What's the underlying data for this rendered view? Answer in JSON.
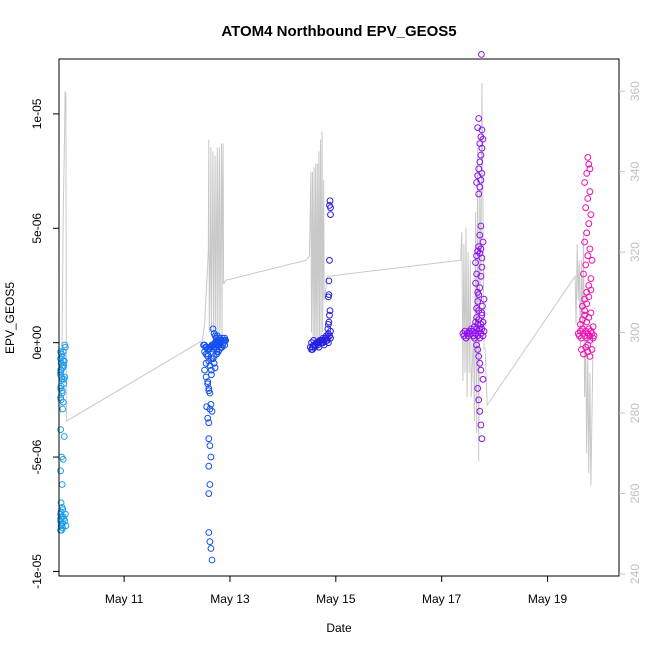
{
  "chart_data": {
    "type": "scatter",
    "title": "ATOM4 Northbound EPV_GEOS5",
    "xlabel": "Date",
    "ylabel": "EPV_GEOS5",
    "x_tick_labels": [
      "May 11",
      "May 13",
      "May 15",
      "May 17",
      "May 19"
    ],
    "x_tick_values": [
      11,
      13,
      15,
      17,
      19
    ],
    "xlim": [
      9.77,
      20.35
    ],
    "ylim": [
      -1.02e-05,
      1.24e-05
    ],
    "y_tick_labels": [
      "-1e-05",
      "-5e-06",
      "0e+00",
      "5e-06",
      "1e-05"
    ],
    "y_tick_values": [
      -1e-05,
      -5e-06,
      0,
      5e-06,
      1e-05
    ],
    "y2lim": [
      239.5,
      368
    ],
    "y2_tick_labels": [
      "240",
      "260",
      "280",
      "300",
      "320",
      "340",
      "360"
    ],
    "y2_tick_values": [
      240,
      260,
      280,
      300,
      320,
      340,
      360
    ],
    "grid": false,
    "colors": {
      "secondary_line": "#c8c8c8",
      "frame": "#000000",
      "right_axis": "#c0c0c0"
    },
    "series": [
      {
        "color": "#1ea0f0",
        "x": [
          9.8,
          9.82,
          9.83,
          9.8,
          9.85,
          9.81,
          9.84,
          9.8,
          9.82,
          9.86,
          9.8,
          9.83,
          9.81,
          9.84,
          9.8,
          9.82,
          9.85,
          9.8,
          9.83,
          9.81,
          9.84,
          9.8,
          9.82,
          9.86,
          9.8,
          9.83,
          9.81,
          9.84,
          9.8,
          9.82,
          9.85,
          9.81,
          9.83,
          9.8,
          9.84,
          9.82,
          9.8,
          9.86,
          9.81,
          9.83,
          9.8,
          9.85,
          9.82,
          9.84,
          9.81,
          9.8,
          9.83,
          9.85,
          9.87,
          9.86,
          9.88,
          9.89,
          9.88,
          9.9,
          9.88,
          9.89,
          9.87
        ],
        "y": [
          -4e-07,
          -5e-07,
          -6e-07,
          -7e-07,
          -8e-07,
          -9e-07,
          -1.1e-06,
          -1.3e-06,
          -1.5e-06,
          -1.8e-06,
          -2e-06,
          -2.2e-06,
          -2.5e-06,
          -2.9e-06,
          -3.8e-06,
          -5e-06,
          -5.1e-06,
          -5.6e-06,
          -6.2e-06,
          -7e-06,
          -7.3e-06,
          -7.5e-06,
          -7.6e-06,
          -7.7e-06,
          -7.8e-06,
          -7.9e-06,
          -8e-06,
          -8.1e-06,
          -8.2e-06,
          -8.2e-06,
          -7.6e-06,
          -7.4e-06,
          -7.2e-06,
          -7.7e-06,
          -7.9e-06,
          -8e-06,
          -1.2e-06,
          -1.6e-06,
          -1.9e-06,
          -2.1e-06,
          -2.4e-06,
          -2.6e-06,
          -9e-07,
          -1e-06,
          -1.2e-06,
          -1.4e-06,
          -1.6e-06,
          -4e-07,
          -8e-07,
          -1e-06,
          -1.5e-06,
          -7.5e-06,
          -7.8e-06,
          -8e-06,
          -1e-07,
          -2e-07,
          -4.1e-06
        ]
      },
      {
        "color": "#1450f0",
        "x": [
          12.5,
          12.52,
          12.54,
          12.56,
          12.58,
          12.6,
          12.62,
          12.64,
          12.66,
          12.68,
          12.7,
          12.72,
          12.74,
          12.76,
          12.78,
          12.8,
          12.82,
          12.84,
          12.86,
          12.88,
          12.9,
          12.92,
          12.52,
          12.55,
          12.58,
          12.6,
          12.62,
          12.65,
          12.68,
          12.7,
          12.72,
          12.75,
          12.78,
          12.8,
          12.83,
          12.86,
          12.88,
          12.9,
          12.55,
          12.58,
          12.6,
          12.62,
          12.65,
          12.56,
          12.58,
          12.6,
          12.62,
          12.64,
          12.66,
          12.6,
          12.62,
          12.64,
          12.6,
          12.62,
          12.6,
          12.6,
          12.62,
          12.64,
          12.66,
          12.68,
          12.7,
          12.72,
          12.74,
          12.76,
          12.78,
          12.8,
          12.82,
          12.7,
          12.75,
          12.8,
          12.85,
          12.9,
          12.65,
          12.7,
          12.75,
          12.58,
          12.62,
          12.66,
          12.7,
          12.74,
          12.55,
          12.52,
          12.58,
          12.6
        ],
        "y": [
          -1e-07,
          -1e-07,
          -2e-07,
          -2e-07,
          -3e-07,
          -3e-07,
          -2e-07,
          -2e-07,
          -1e-07,
          -1e-07,
          -1e-07,
          0,
          0,
          1e-07,
          -1e-07,
          0,
          1e-07,
          1e-07,
          2e-07,
          1e-07,
          2e-07,
          1e-07,
          -4e-07,
          -5e-07,
          -6e-07,
          -8e-07,
          -1e-06,
          -1.2e-06,
          -7e-07,
          -9e-07,
          -1.1e-06,
          -5e-07,
          -4e-07,
          -3e-07,
          -2e-07,
          -1e-07,
          0,
          1e-07,
          -1.5e-06,
          -1.8e-06,
          -2e-06,
          -2.2e-06,
          -1.4e-06,
          -2.8e-06,
          -3.3e-06,
          -3.5e-06,
          -2.9e-06,
          -2.7e-06,
          -3e-06,
          -4.2e-06,
          -4.5e-06,
          -5e-06,
          -5.4e-06,
          -6.2e-06,
          -6.6e-06,
          -8.3e-06,
          -8.7e-06,
          -9e-06,
          -9.5e-06,
          6e-07,
          4e-07,
          3e-07,
          2e-07,
          3e-07,
          1e-07,
          2e-07,
          0,
          -2e-07,
          -4e-07,
          -1e-07,
          -2e-07,
          -1e-07,
          -7e-07,
          -6e-07,
          -3e-07,
          -5e-07,
          -2e-07,
          -1e-07,
          -3e-07,
          -1e-07,
          -9e-07,
          -1.2e-06,
          -1.7e-06,
          -2.1e-06
        ]
      },
      {
        "color": "#2820e0",
        "x": [
          14.52,
          14.54,
          14.56,
          14.58,
          14.6,
          14.62,
          14.64,
          14.66,
          14.68,
          14.7,
          14.72,
          14.74,
          14.76,
          14.78,
          14.8,
          14.82,
          14.84,
          14.86,
          14.88,
          14.9,
          14.54,
          14.58,
          14.62,
          14.66,
          14.7,
          14.74,
          14.78,
          14.82,
          14.86,
          14.9,
          14.56,
          14.6,
          14.64,
          14.68,
          14.72,
          14.76,
          14.8,
          14.84,
          14.88,
          14.85,
          14.86,
          14.87,
          14.88,
          14.89,
          14.86,
          14.87,
          14.88,
          14.87,
          14.9,
          14.89,
          14.88,
          14.9
        ],
        "y": [
          -2e-07,
          -3e-07,
          -2e-07,
          -1e-07,
          -2e-07,
          -1e-07,
          0,
          -1e-07,
          0,
          1e-07,
          0,
          1e-07,
          2e-07,
          1e-07,
          2e-07,
          3e-07,
          2e-07,
          4e-07,
          3e-07,
          5e-07,
          0,
          1e-07,
          -1e-07,
          0,
          1e-07,
          0,
          -1e-07,
          1e-07,
          0,
          2e-07,
          -3e-07,
          -1e-07,
          0,
          -2e-07,
          1e-07,
          0,
          2e-07,
          1e-07,
          3e-07,
          6e-07,
          8e-07,
          9e-07,
          1.2e-06,
          1.4e-06,
          2e-06,
          2.1e-06,
          3.6e-06,
          2.7e-06,
          5.9e-06,
          6.2e-06,
          6e-06,
          5.6e-06
        ]
      },
      {
        "color": "#9010f0",
        "x": [
          17.4,
          17.42,
          17.44,
          17.46,
          17.48,
          17.5,
          17.52,
          17.54,
          17.56,
          17.58,
          17.6,
          17.62,
          17.64,
          17.66,
          17.68,
          17.7,
          17.72,
          17.74,
          17.76,
          17.78,
          17.8,
          17.62,
          17.64,
          17.66,
          17.68,
          17.7,
          17.72,
          17.74,
          17.76,
          17.78,
          17.66,
          17.68,
          17.7,
          17.72,
          17.74,
          17.76,
          17.64,
          17.66,
          17.68,
          17.7,
          17.72,
          17.74,
          17.76,
          17.78,
          17.66,
          17.68,
          17.7,
          17.72,
          17.74,
          17.76,
          17.68,
          17.7,
          17.72,
          17.74,
          17.76,
          17.7,
          17.72,
          17.74,
          17.76,
          17.78,
          17.66,
          17.68,
          17.7,
          17.72,
          17.74,
          17.68,
          17.7,
          17.72,
          17.74,
          17.76,
          17.78,
          17.75,
          17.76,
          17.77,
          17.78,
          17.8,
          17.64,
          17.66,
          17.68,
          17.7,
          17.72,
          17.74
        ],
        "y": [
          4e-07,
          3e-07,
          5e-07,
          2e-07,
          4e-07,
          3e-07,
          5e-07,
          4e-07,
          6e-07,
          5e-07,
          3e-07,
          2e-07,
          4e-07,
          6e-07,
          3e-07,
          5e-07,
          2e-07,
          4e-07,
          6e-07,
          3e-07,
          5e-07,
          7e-07,
          9e-07,
          1.1e-06,
          8e-07,
          1e-06,
          6e-07,
          8e-07,
          1.2e-06,
          9e-07,
          1.5e-06,
          1.8e-06,
          2.1e-06,
          2.4e-06,
          2.9e-06,
          3.3e-06,
          3.5e-06,
          3.8e-06,
          4e-06,
          4.2e-06,
          3.9e-06,
          4.1e-06,
          3.7e-06,
          4.4e-06,
          7e-06,
          7.3e-06,
          7.6e-06,
          7.9e-06,
          8.2e-06,
          8.5e-06,
          9.4e-06,
          9.8e-06,
          8.7e-06,
          9e-06,
          9.3e-06,
          6.5e-06,
          6.8e-06,
          7.1e-06,
          7.4e-06,
          8.9e-06,
          -1e-07,
          -3e-07,
          -6e-07,
          -9e-07,
          -1.2e-06,
          -2e-06,
          -2.5e-06,
          -3e-06,
          -3.6e-06,
          -4.2e-06,
          -1.6e-06,
          1.26e-05,
          1.3e-06,
          1.6e-06,
          9e-07,
          1.9e-06,
          2.6e-06,
          3e-06,
          2.2e-06,
          1.4e-06,
          4.7e-06,
          5.1e-06
        ]
      },
      {
        "color": "#f010b4",
        "x": [
          19.58,
          19.6,
          19.62,
          19.64,
          19.66,
          19.68,
          19.7,
          19.72,
          19.74,
          19.76,
          19.78,
          19.8,
          19.82,
          19.84,
          19.86,
          19.88,
          19.62,
          19.66,
          19.7,
          19.74,
          19.78,
          19.82,
          19.86,
          19.64,
          19.68,
          19.72,
          19.76,
          19.8,
          19.84,
          19.66,
          19.7,
          19.74,
          19.78,
          19.82,
          19.68,
          19.72,
          19.76,
          19.8,
          19.84,
          19.7,
          19.74,
          19.78,
          19.82,
          19.72,
          19.76,
          19.8,
          19.7,
          19.74,
          19.78,
          19.76,
          19.8,
          19.7,
          19.74,
          19.78,
          19.82,
          19.76,
          19.8
        ],
        "y": [
          4e-07,
          3e-07,
          5e-07,
          2e-07,
          6e-07,
          4e-07,
          3e-07,
          5e-07,
          2e-07,
          4e-07,
          6e-07,
          3e-07,
          5e-07,
          4e-07,
          2e-07,
          3e-07,
          8e-07,
          1e-06,
          1.2e-06,
          9e-07,
          1.1e-06,
          1.3e-06,
          7e-07,
          -3e-07,
          -5e-07,
          -2e-07,
          -4e-07,
          -6e-07,
          -3e-07,
          1.6e-06,
          1.9e-06,
          2.2e-06,
          2.5e-06,
          2.8e-06,
          3e-06,
          3.4e-06,
          3.8e-06,
          4.1e-06,
          3.6e-06,
          4.4e-06,
          4.8e-06,
          5.2e-06,
          5.6e-06,
          5.9e-06,
          6.3e-06,
          6.6e-06,
          7e-06,
          7.4e-06,
          7.8e-06,
          8.1e-06,
          7.6e-06,
          1.4e-06,
          1.7e-06,
          2e-06,
          2.3e-06,
          -1e-07,
          1e-07
        ]
      }
    ],
    "secondary_line_y2": [
      [
        9.8,
        280
      ],
      [
        9.83,
        300
      ],
      [
        9.85,
        330
      ],
      [
        9.86,
        338
      ],
      [
        9.875,
        350
      ],
      [
        9.885,
        360
      ],
      [
        9.9,
        359
      ],
      [
        9.91,
        278
      ],
      [
        12.48,
        298
      ],
      [
        12.52,
        302
      ],
      [
        12.56,
        312
      ],
      [
        12.59,
        320
      ],
      [
        12.6,
        348
      ],
      [
        12.61,
        300
      ],
      [
        12.63,
        322
      ],
      [
        12.64,
        346
      ],
      [
        12.65,
        300
      ],
      [
        12.67,
        330
      ],
      [
        12.68,
        345
      ],
      [
        12.69,
        298
      ],
      [
        12.71,
        330
      ],
      [
        12.72,
        344
      ],
      [
        12.73,
        298
      ],
      [
        12.75,
        332
      ],
      [
        12.76,
        346
      ],
      [
        12.77,
        298
      ],
      [
        12.79,
        333
      ],
      [
        12.8,
        346
      ],
      [
        12.81,
        298
      ],
      [
        12.83,
        334
      ],
      [
        12.84,
        347
      ],
      [
        12.85,
        298
      ],
      [
        12.86,
        336
      ],
      [
        12.87,
        347
      ],
      [
        12.88,
        312
      ],
      [
        12.92,
        313
      ],
      [
        14.44,
        318
      ],
      [
        14.5,
        319
      ],
      [
        14.52,
        332
      ],
      [
        14.53,
        340
      ],
      [
        14.54,
        300
      ],
      [
        14.56,
        340
      ],
      [
        14.57,
        298
      ],
      [
        14.59,
        341
      ],
      [
        14.6,
        298
      ],
      [
        14.62,
        342
      ],
      [
        14.63,
        298
      ],
      [
        14.65,
        342
      ],
      [
        14.66,
        298
      ],
      [
        14.68,
        345
      ],
      [
        14.69,
        298
      ],
      [
        14.71,
        348
      ],
      [
        14.72,
        298
      ],
      [
        14.74,
        350
      ],
      [
        14.75,
        300
      ],
      [
        14.77,
        338
      ],
      [
        14.78,
        308
      ],
      [
        14.84,
        314
      ],
      [
        17.36,
        318
      ],
      [
        17.38,
        325
      ],
      [
        17.4,
        288
      ],
      [
        17.42,
        322
      ],
      [
        17.44,
        290
      ],
      [
        17.46,
        326
      ],
      [
        17.48,
        284
      ],
      [
        17.5,
        320
      ],
      [
        17.52,
        290
      ],
      [
        17.54,
        318
      ],
      [
        17.56,
        284
      ],
      [
        17.6,
        300
      ],
      [
        17.62,
        278
      ],
      [
        17.64,
        330
      ],
      [
        17.66,
        275
      ],
      [
        17.68,
        346
      ],
      [
        17.7,
        268
      ],
      [
        17.72,
        335
      ],
      [
        17.74,
        312
      ],
      [
        17.76,
        362
      ],
      [
        17.78,
        330
      ],
      [
        17.8,
        296
      ],
      [
        17.82,
        296
      ],
      [
        17.86,
        282
      ],
      [
        19.52,
        314
      ],
      [
        19.54,
        302
      ],
      [
        19.56,
        322
      ],
      [
        19.58,
        308
      ],
      [
        19.6,
        318
      ],
      [
        19.62,
        296
      ],
      [
        19.64,
        318
      ],
      [
        19.66,
        300
      ],
      [
        19.68,
        325
      ],
      [
        19.7,
        284
      ],
      [
        19.72,
        298
      ],
      [
        19.74,
        270
      ],
      [
        19.76,
        295
      ],
      [
        19.78,
        265
      ],
      [
        19.8,
        290
      ],
      [
        19.82,
        262
      ],
      [
        19.84,
        280
      ],
      [
        19.86,
        298
      ]
    ]
  }
}
